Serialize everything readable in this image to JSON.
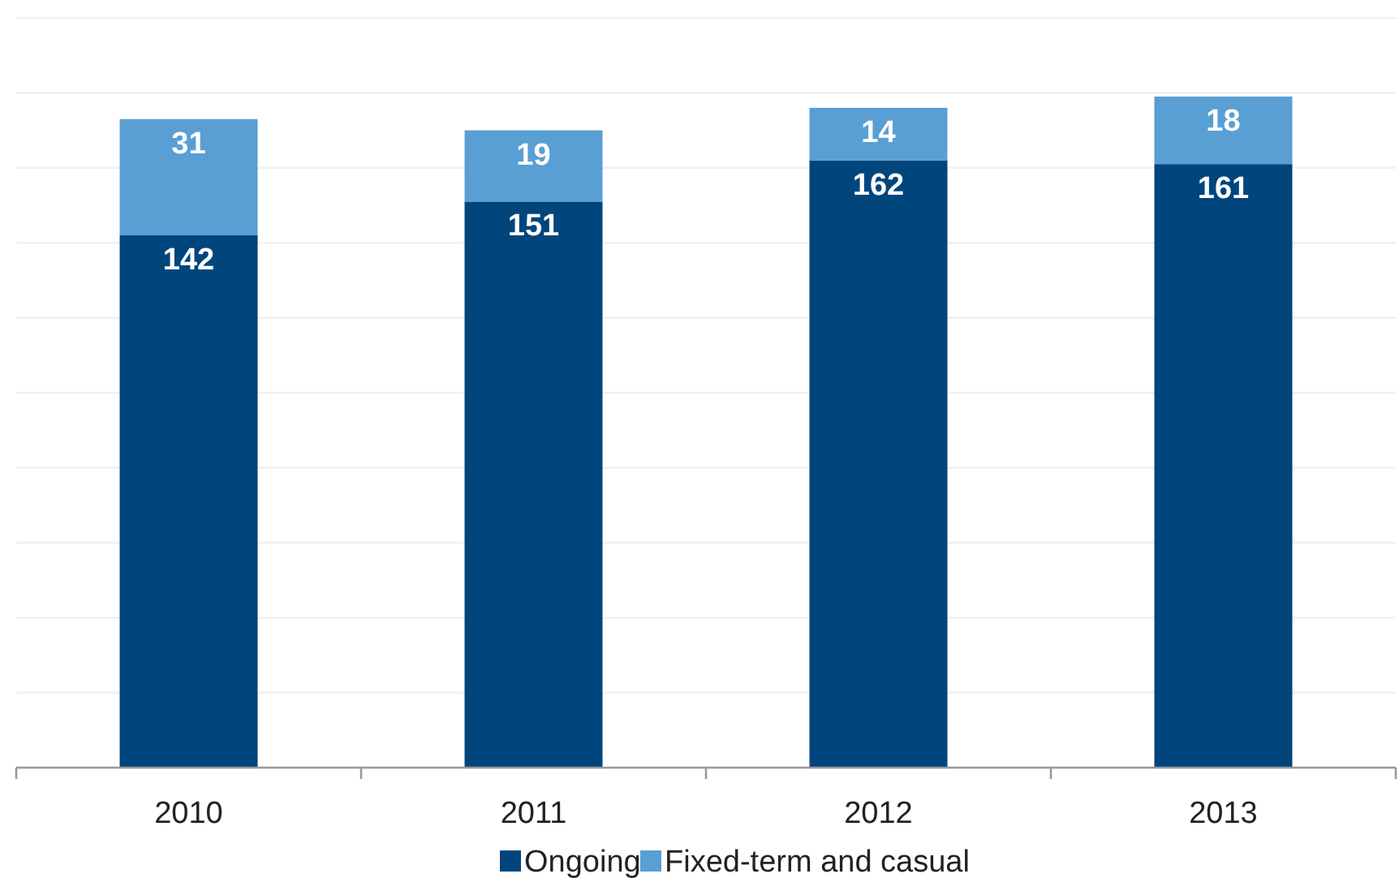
{
  "chart_data": {
    "type": "bar",
    "stacked": true,
    "categories": [
      "2010",
      "2011",
      "2012",
      "2013"
    ],
    "series": [
      {
        "name": "Ongoing",
        "color": "#00457c",
        "values": [
          142,
          151,
          162,
          161
        ]
      },
      {
        "name": "Fixed-term and casual",
        "color": "#599fd4",
        "values": [
          31,
          19,
          14,
          18
        ]
      }
    ],
    "ylim": [
      0,
      200
    ],
    "yticks": [
      {
        "value": 0,
        "label": null
      },
      {
        "value": 20,
        "label": null
      },
      {
        "value": 40,
        "label": null
      },
      {
        "value": 60,
        "label": null
      },
      {
        "value": 80,
        "label": null
      },
      {
        "value": 100,
        "label": null
      },
      {
        "value": 120,
        "label": null
      },
      {
        "value": 140,
        "label": null
      },
      {
        "value": 160,
        "label": null
      },
      {
        "value": 180,
        "label": null
      },
      {
        "value": 200,
        "label": null
      }
    ],
    "tick_labels": "x",
    "grid": "y",
    "data_labels": true,
    "legend": "bottom"
  }
}
